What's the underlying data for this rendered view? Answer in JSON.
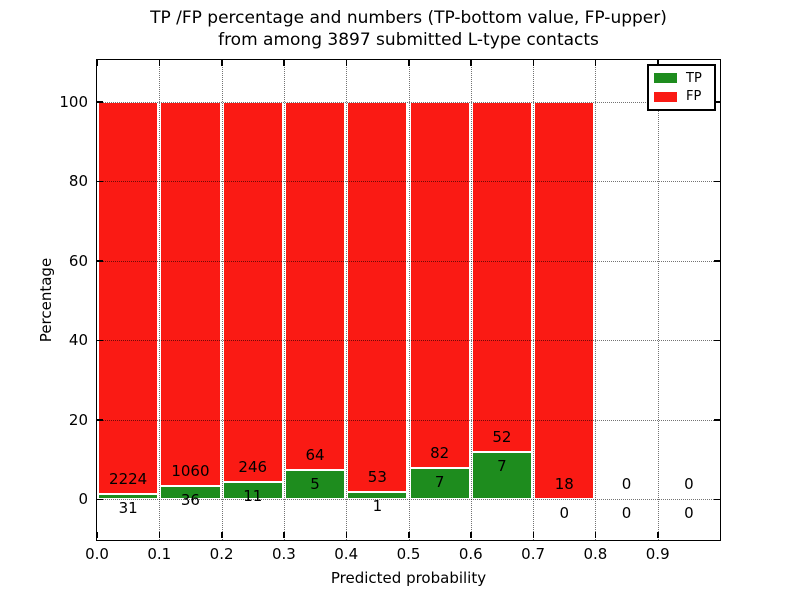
{
  "title": {
    "line1": "TP /FP percentage and numbers (TP-bottom value, FP-upper)",
    "line2": "from among 3897 submitted L-type contacts"
  },
  "axes": {
    "xlabel": "Predicted probability",
    "ylabel": "Percentage",
    "xtick_labels": [
      "0.0",
      "0.1",
      "0.2",
      "0.3",
      "0.4",
      "0.5",
      "0.6",
      "0.7",
      "0.8",
      "0.9"
    ],
    "ytick_labels": [
      "0",
      "20",
      "40",
      "60",
      "80",
      "100"
    ]
  },
  "legend": {
    "items": [
      {
        "label": "TP",
        "color": "#1E8C1E"
      },
      {
        "label": "FP",
        "color": "#FA1A14"
      }
    ]
  },
  "chart_data": {
    "type": "bar",
    "stacked": true,
    "title": "TP /FP percentage and numbers (TP-bottom value, FP-upper) from among 3897 submitted L-type contacts",
    "xlabel": "Predicted probability",
    "ylabel": "Percentage",
    "total_submitted_contacts": 3897,
    "bin_starts": [
      0.0,
      0.1,
      0.2,
      0.3,
      0.4,
      0.5,
      0.6,
      0.7,
      0.8,
      0.9
    ],
    "bin_width": 0.1,
    "series": [
      {
        "name": "TP",
        "color": "#1E8C1E",
        "counts": [
          31,
          36,
          11,
          5,
          1,
          7,
          7,
          0,
          0,
          0
        ]
      },
      {
        "name": "FP",
        "color": "#FA1A14",
        "counts": [
          2224,
          1060,
          246,
          64,
          53,
          82,
          52,
          18,
          0,
          0
        ]
      }
    ],
    "tp_percent_of_bin": [
      1.37,
      3.28,
      4.28,
      7.25,
      1.85,
      7.87,
      11.86,
      0,
      0,
      0
    ],
    "bar_total_percent": 100,
    "yticks": [
      0,
      20,
      40,
      60,
      80,
      100
    ],
    "xticks": [
      0.0,
      0.1,
      0.2,
      0.3,
      0.4,
      0.5,
      0.6,
      0.7,
      0.8,
      0.9
    ],
    "ylim": [
      -10.3,
      110.5
    ],
    "xlim": [
      0.0,
      1.0
    ],
    "grid": "dotted-both-axes",
    "legend_position": "upper right"
  }
}
